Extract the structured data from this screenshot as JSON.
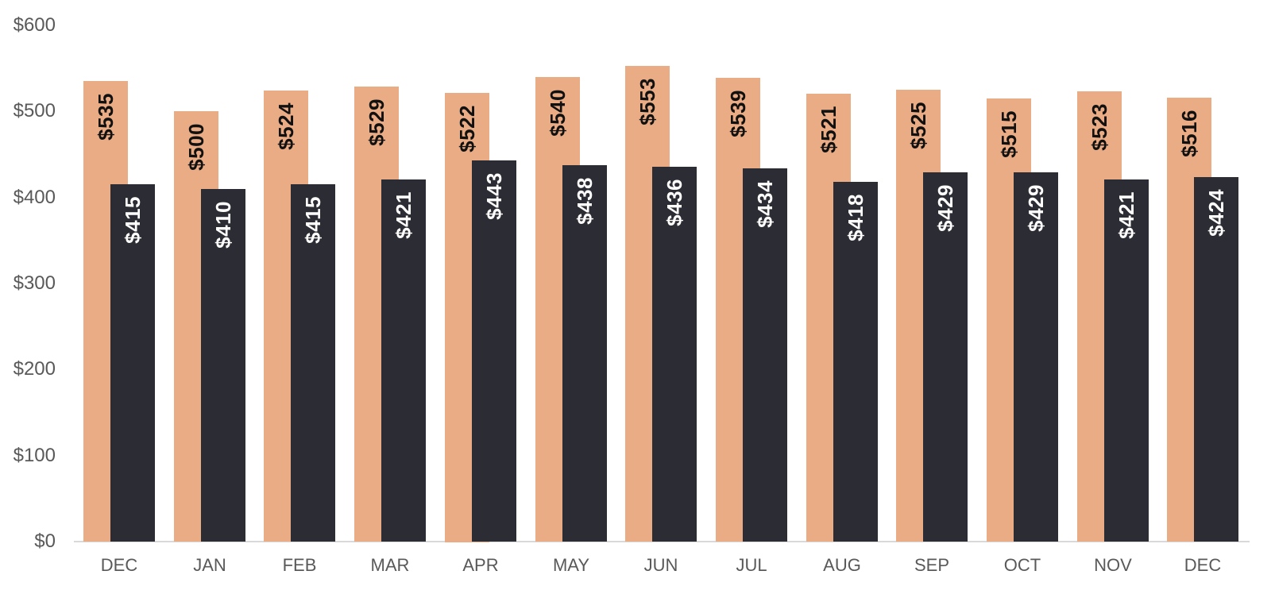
{
  "chart_data": {
    "type": "bar",
    "bar_style": "overlapped",
    "title": "",
    "xlabel": "",
    "ylabel": "",
    "categories": [
      "DEC",
      "JAN",
      "FEB",
      "MAR",
      "APR",
      "MAY",
      "JUN",
      "JUL",
      "AUG",
      "SEP",
      "OCT",
      "NOV",
      "DEC"
    ],
    "series": [
      {
        "name": "peach-series",
        "color": "#EAAC85",
        "label_color": "#111111",
        "values": [
          535,
          500,
          524,
          529,
          522,
          540,
          553,
          539,
          521,
          525,
          515,
          523,
          516
        ],
        "data_labels": [
          "$535",
          "$500",
          "$524",
          "$529",
          "$522",
          "$540",
          "$553",
          "$539",
          "$521",
          "$525",
          "$515",
          "$523",
          "$516"
        ]
      },
      {
        "name": "charcoal-series",
        "color": "#2C2C34",
        "label_color": "#FFFFFF",
        "values": [
          415,
          410,
          415,
          421,
          443,
          438,
          436,
          434,
          418,
          429,
          429,
          421,
          424
        ],
        "data_labels": [
          "$415",
          "$410",
          "$415",
          "$421",
          "$443",
          "$438",
          "$436",
          "$434",
          "$418",
          "$429",
          "$429",
          "$421",
          "$424"
        ]
      }
    ],
    "y_axis": {
      "ylim": [
        0,
        600
      ],
      "tick_step": 100,
      "tick_labels": [
        "$0",
        "$100",
        "$200",
        "$300",
        "$400",
        "$500",
        "$600"
      ],
      "tick_color": "#595959"
    },
    "x_axis": {
      "tick_color": "#595959",
      "axis_line_color": "#D9D9D9"
    },
    "grid": false,
    "legend": "none",
    "background_color": "#FFFFFF"
  }
}
